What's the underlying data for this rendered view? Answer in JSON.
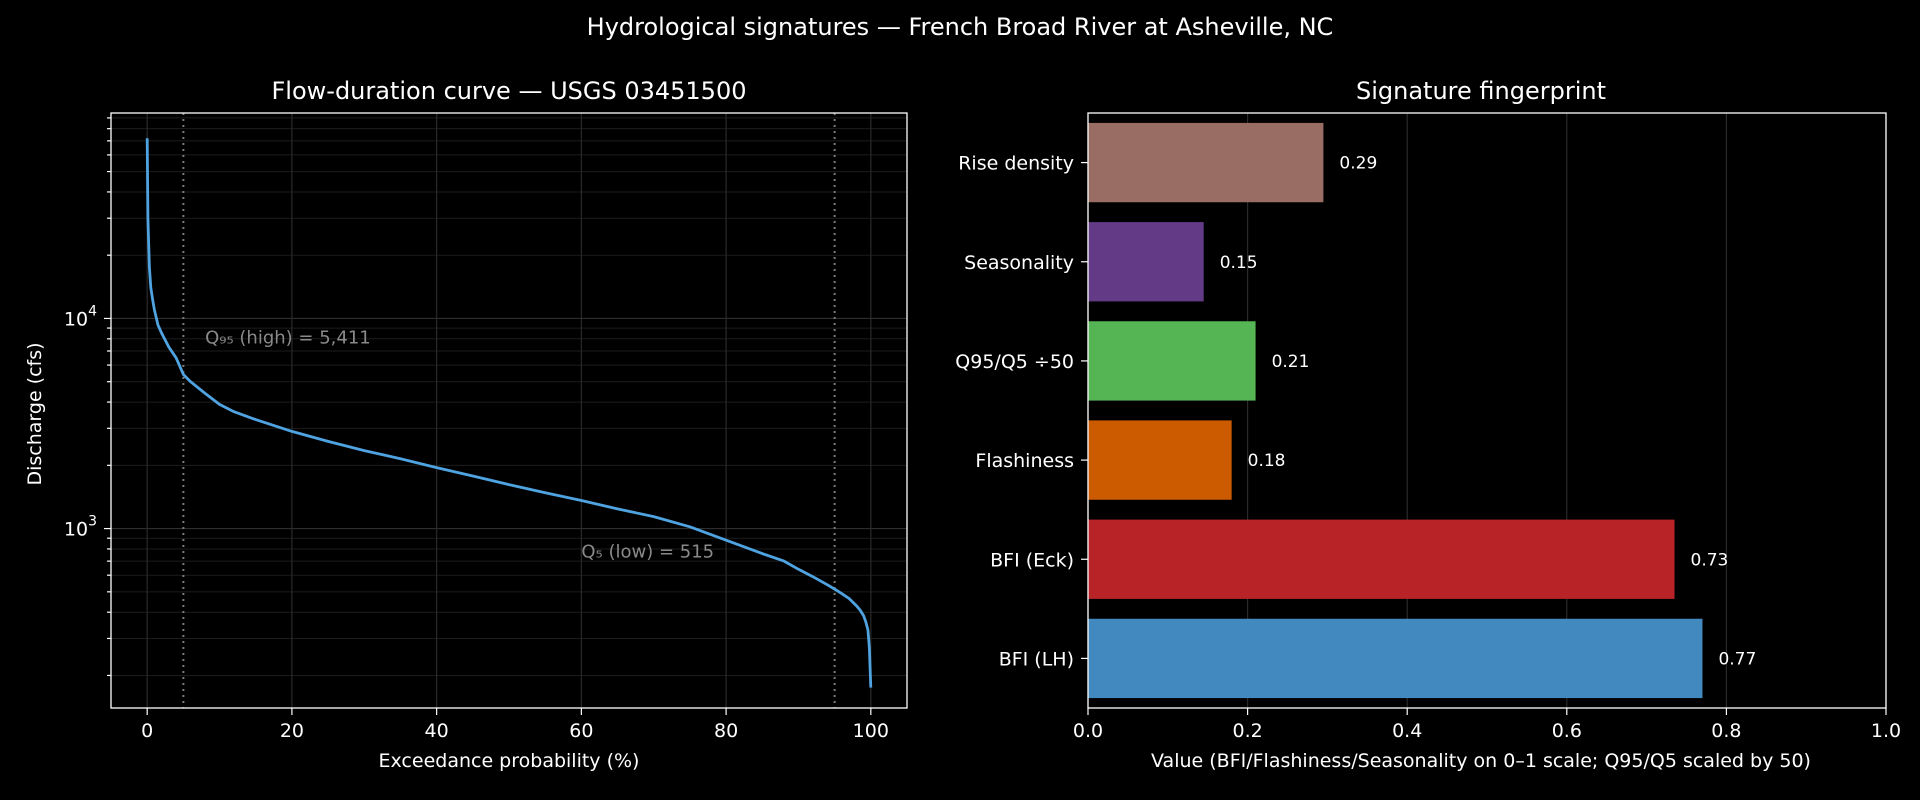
{
  "suptitle": "Hydrological signatures — French Broad River at Asheville, NC",
  "chart_data": [
    {
      "type": "line",
      "title": "Flow-duration curve — USGS 03451500",
      "xlabel": "Exceedance probability (%)",
      "ylabel": "Discharge (cfs)",
      "xlim": [
        -5,
        105
      ],
      "ylim": [
        140,
        95000
      ],
      "yscale": "log",
      "xticks": [
        0,
        20,
        40,
        60,
        80,
        100
      ],
      "xtick_labels": [
        "0",
        "20",
        "40",
        "60",
        "80",
        "100"
      ],
      "yticks": [
        1000,
        10000
      ],
      "ytick_labels": [
        {
          "base": "10",
          "exp": "3"
        },
        {
          "base": "10",
          "exp": "4"
        }
      ],
      "grid": true,
      "series": [
        {
          "color": "#4fa3e0",
          "x": [
            0,
            0.1,
            0.3,
            0.5,
            0.8,
            1,
            1.5,
            2,
            3,
            4,
            5,
            6,
            8,
            10,
            12,
            15,
            20,
            25,
            30,
            35,
            40,
            45,
            50,
            55,
            60,
            65,
            70,
            75,
            80,
            85,
            88,
            90,
            92,
            94,
            95,
            96,
            97,
            98,
            98.5,
            99,
            99.3,
            99.6,
            99.8,
            100
          ],
          "y": [
            72000,
            30000,
            17500,
            14000,
            12000,
            11000,
            9300,
            8500,
            7300,
            6500,
            5411,
            5000,
            4400,
            3900,
            3600,
            3300,
            2900,
            2600,
            2350,
            2150,
            1950,
            1780,
            1620,
            1480,
            1360,
            1240,
            1140,
            1020,
            880,
            760,
            700,
            640,
            590,
            540,
            515,
            490,
            465,
            430,
            410,
            385,
            360,
            330,
            270,
            175
          ]
        }
      ],
      "vlines": [
        5,
        95
      ],
      "annotations": [
        {
          "text": "Q₉₅ (high) = 5,411",
          "x": 8,
          "y": 7600
        },
        {
          "text": "Q₅ (low) = 515",
          "x": 60,
          "y": 730
        }
      ]
    },
    {
      "type": "bar",
      "orientation": "horizontal",
      "title": "Signature fingerprint",
      "xlabel": "Value (BFI/Flashiness/Seasonality on 0–1 scale; Q95/Q5 scaled by 50)",
      "xlim": [
        0,
        1
      ],
      "xticks": [
        0,
        0.2,
        0.4,
        0.6,
        0.8,
        1.0
      ],
      "xtick_labels": [
        "0.0",
        "0.2",
        "0.4",
        "0.6",
        "0.8",
        "1.0"
      ],
      "grid": true,
      "categories": [
        "BFI (LH)",
        "BFI (Eck)",
        "Flashiness",
        "Q95/Q5 ÷50",
        "Seasonality",
        "Rise density"
      ],
      "values": [
        0.77,
        0.735,
        0.18,
        0.21,
        0.145,
        0.295
      ],
      "value_labels": [
        "0.77",
        "0.73",
        "0.18",
        "0.21",
        "0.15",
        "0.29"
      ],
      "colors": [
        "#4189be",
        "#b72327",
        "#cc5b00",
        "#55b555",
        "#633a86",
        "#996d63"
      ]
    }
  ]
}
